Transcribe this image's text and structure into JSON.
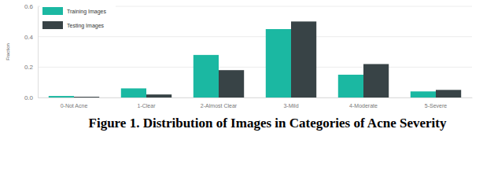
{
  "chart_data": {
    "type": "bar",
    "title": "Figure 1. Distribution of Images in Categories of Acne Severity",
    "y_label": "Fraction",
    "categories": [
      "0-Not Acne",
      "1-Clear",
      "2-Almost Clear",
      "3-Mild",
      "4-Moderate",
      "5-Severe"
    ],
    "series": [
      {
        "name": "Training Images",
        "color": "#1bb8a2",
        "values": [
          0.01,
          0.06,
          0.28,
          0.45,
          0.15,
          0.04
        ]
      },
      {
        "name": "Testing Images",
        "color": "#384346",
        "values": [
          0.005,
          0.02,
          0.18,
          0.5,
          0.22,
          0.05
        ]
      }
    ],
    "ylim": [
      0,
      0.6
    ],
    "yticks": [
      {
        "value": 0,
        "label": "0.0"
      },
      0.2,
      0.4,
      0.6
    ],
    "grid": true,
    "legend": "top-left"
  }
}
